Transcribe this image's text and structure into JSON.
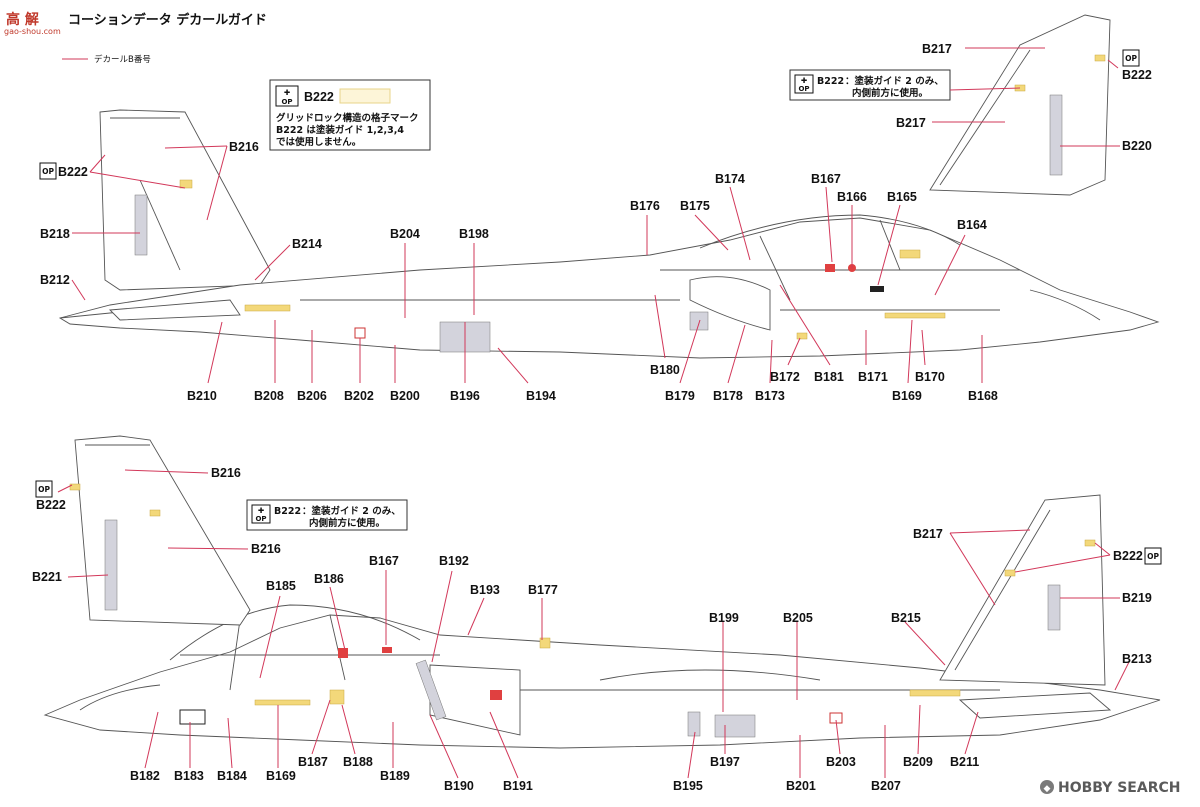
{
  "header": {
    "title": "コーションデータ デカールガイド",
    "site_mark": "高 解",
    "site_url": "gao-shou.com",
    "legend_text": "デカールB番号"
  },
  "notes": {
    "op_icon": "OP",
    "box1_code": "B222",
    "box1_line1": "グリッドロック構造の格子マーク",
    "box1_line2": "B222 は塗装ガイド 1,2,3,4",
    "box1_line3": "では使用しません。",
    "box2_code": "B222",
    "box2_line1": "：塗装ガイド 2 のみ、",
    "box2_line2": "内側前方に使用。",
    "box3_code": "B222",
    "box3_line1": "：塗装ガイド 2 のみ、",
    "box3_line2": "内側前方に使用。"
  },
  "labels_top": [
    "B216",
    "B222",
    "B218",
    "B212",
    "B214",
    "B204",
    "B198",
    "B176",
    "B175",
    "B174",
    "B167",
    "B166",
    "B165",
    "B164",
    "B210",
    "B208",
    "B206",
    "B202",
    "B200",
    "B196",
    "B194",
    "B180",
    "B179",
    "B178",
    "B173",
    "B172",
    "B181",
    "B171",
    "B169",
    "B170",
    "B168",
    "B217",
    "B222",
    "B217",
    "B220",
    "B222"
  ],
  "labels_bottom": [
    "B216",
    "B222",
    "B216",
    "B221",
    "B185",
    "B186",
    "B167",
    "B192",
    "B193",
    "B177",
    "B199",
    "B205",
    "B215",
    "B217",
    "B222",
    "B219",
    "B213",
    "B182",
    "B183",
    "B184",
    "B169",
    "B187",
    "B188",
    "B189",
    "B190",
    "B191",
    "B195",
    "B197",
    "B201",
    "B203",
    "B207",
    "B209",
    "B211"
  ],
  "footer": {
    "brand": "HOBBY SEARCH"
  },
  "colors": {
    "leader": "#d2385a",
    "panel": "#d3d3dc",
    "stencil_yellow": "#f3d87a"
  }
}
